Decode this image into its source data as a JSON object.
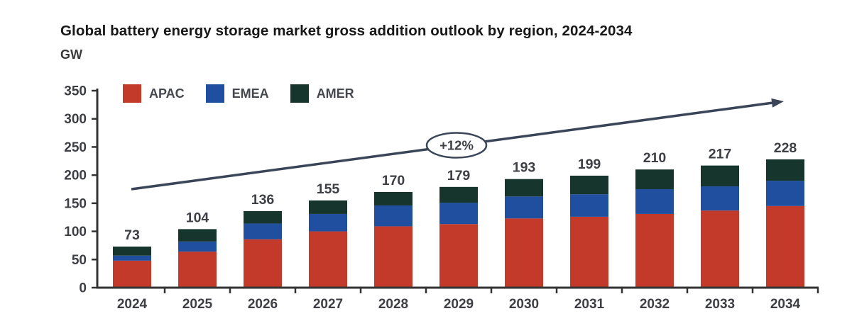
{
  "title": "Global battery energy storage market gross addition outlook by region, 2024-2034",
  "unit": "GW",
  "annotation": {
    "label": "+12%"
  },
  "chart_data": {
    "type": "bar",
    "stacked": true,
    "title": "Global battery energy storage market gross addition outlook by region, 2024-2034",
    "ylabel": "GW",
    "xlabel": "",
    "categories": [
      "2024",
      "2025",
      "2026",
      "2027",
      "2028",
      "2029",
      "2030",
      "2031",
      "2032",
      "2033",
      "2034"
    ],
    "series": [
      {
        "name": "APAC",
        "color": "#c3392a",
        "values": [
          48,
          64,
          86,
          100,
          109,
          113,
          123,
          126,
          131,
          137,
          145
        ]
      },
      {
        "name": "EMEA",
        "color": "#1f4f9e",
        "values": [
          9,
          18,
          28,
          31,
          37,
          38,
          39,
          40,
          44,
          43,
          45
        ]
      },
      {
        "name": "AMER",
        "color": "#16352c",
        "values": [
          16,
          22,
          22,
          24,
          24,
          28,
          31,
          33,
          35,
          37,
          38
        ]
      }
    ],
    "totals": [
      73,
      104,
      136,
      155,
      170,
      179,
      193,
      199,
      210,
      217,
      228
    ],
    "ylim": [
      0,
      350
    ],
    "y_tick_interval": 50,
    "y_ticks": [
      0,
      50,
      100,
      150,
      200,
      250,
      300,
      350
    ],
    "grid": false,
    "legend_position": "top-left",
    "annotation_label": "+12%",
    "axis_color": "#333333",
    "text_color": "#45474f",
    "label_color": "#3d3f45",
    "arrow_color": "#3a4557"
  }
}
